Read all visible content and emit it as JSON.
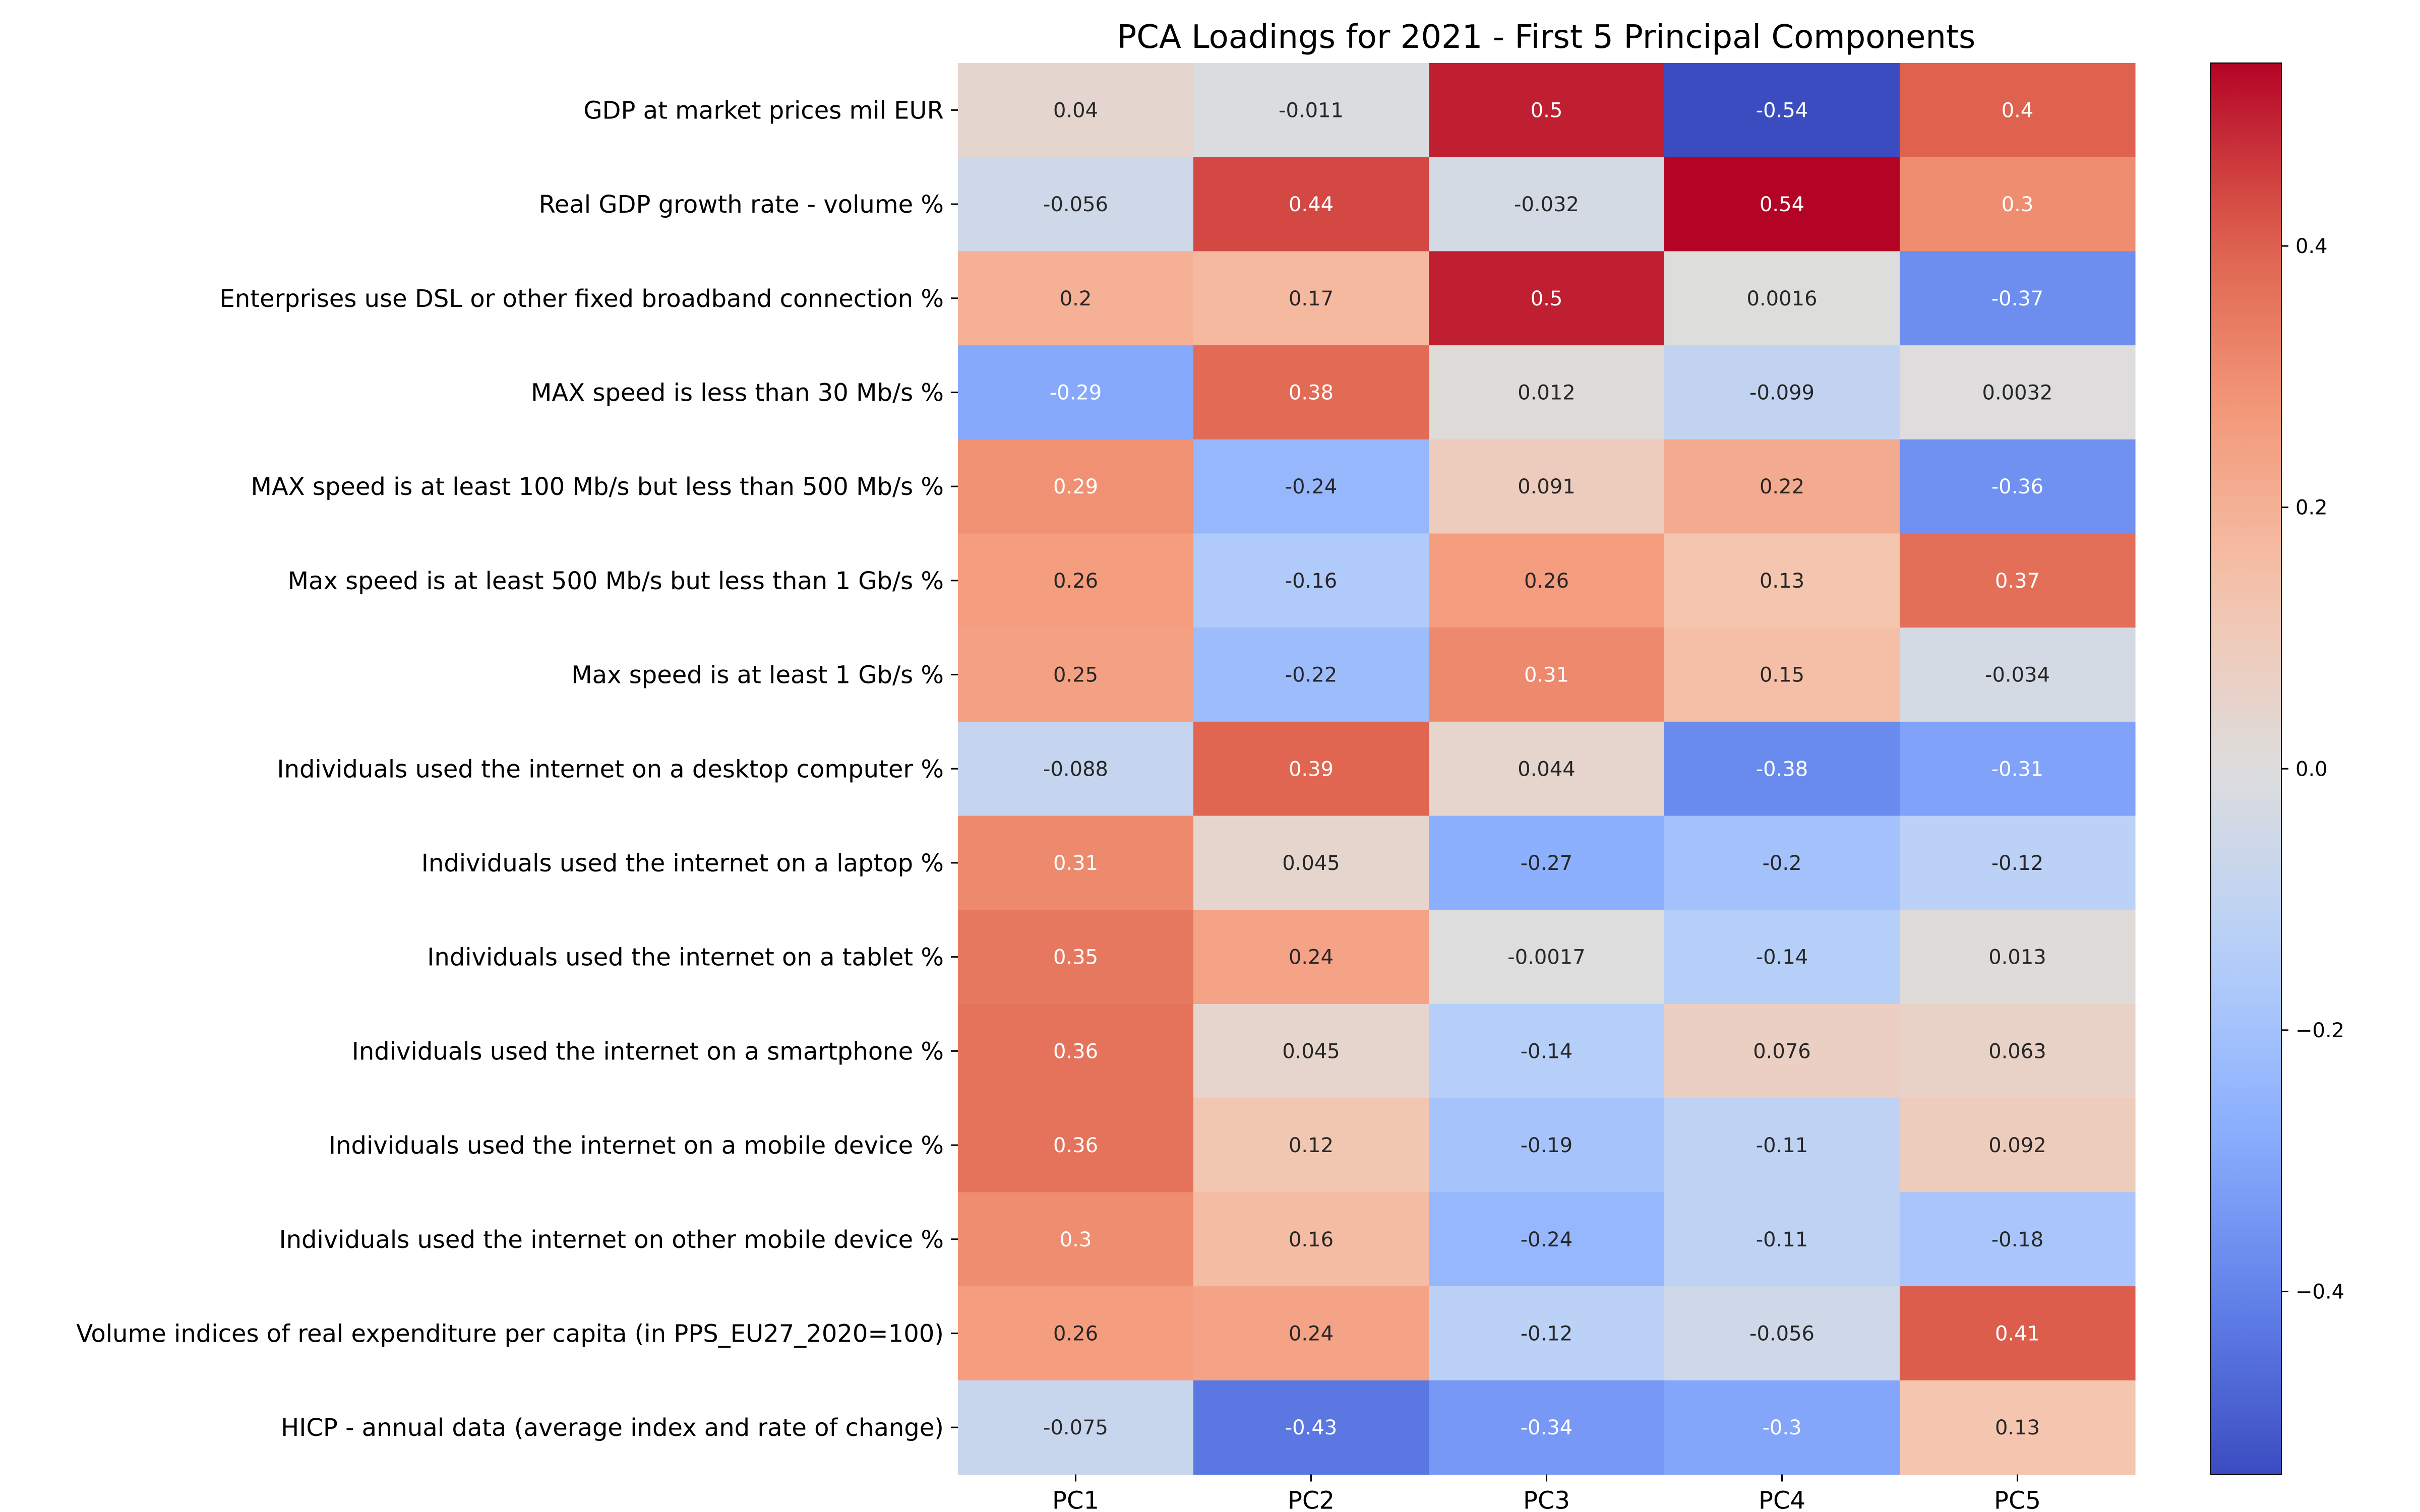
{
  "chart_data": {
    "type": "heatmap",
    "title": "PCA Loadings for 2021 - First 5 Principal Components",
    "colormap": "coolwarm",
    "vmin": -0.54,
    "vmax": 0.54,
    "columns": [
      "PC1",
      "PC2",
      "PC3",
      "PC4",
      "PC5"
    ],
    "rows": [
      "GDP at market prices mil EUR",
      "Real GDP growth rate - volume %",
      "Enterprises use DSL or other fixed broadband connection %",
      "MAX speed is less than 30 Mb/s %",
      "MAX speed is at least 100 Mb/s but less than 500 Mb/s %",
      "Max speed is at least 500 Mb/s but less than 1 Gb/s %",
      "Max speed is at least 1 Gb/s %",
      "Individuals used the internet on a desktop computer %",
      "Individuals used the internet on a laptop %",
      "Individuals used the internet on a tablet %",
      "Individuals used the internet on a smartphone %",
      "Individuals used the internet on a mobile device %",
      "Individuals used the internet on other mobile device %",
      "Volume indices of real expenditure per capita (in PPS_EU27_2020=100)",
      "HICP - annual data (average index and rate of change)"
    ],
    "values": [
      [
        0.04,
        -0.011,
        0.5,
        -0.54,
        0.4
      ],
      [
        -0.056,
        0.44,
        -0.032,
        0.54,
        0.3
      ],
      [
        0.2,
        0.17,
        0.5,
        0.0016,
        -0.37
      ],
      [
        -0.29,
        0.38,
        0.012,
        -0.099,
        0.0032
      ],
      [
        0.29,
        -0.24,
        0.091,
        0.22,
        -0.36
      ],
      [
        0.26,
        -0.16,
        0.26,
        0.13,
        0.37
      ],
      [
        0.25,
        -0.22,
        0.31,
        0.15,
        -0.034
      ],
      [
        -0.088,
        0.39,
        0.044,
        -0.38,
        -0.31
      ],
      [
        0.31,
        0.045,
        -0.27,
        -0.2,
        -0.12
      ],
      [
        0.35,
        0.24,
        -0.0017,
        -0.14,
        0.013
      ],
      [
        0.36,
        0.045,
        -0.14,
        0.076,
        0.063
      ],
      [
        0.36,
        0.12,
        -0.19,
        -0.11,
        0.092
      ],
      [
        0.3,
        0.16,
        -0.24,
        -0.11,
        -0.18
      ],
      [
        0.26,
        0.24,
        -0.12,
        -0.056,
        0.41
      ],
      [
        -0.075,
        -0.43,
        -0.34,
        -0.3,
        0.13
      ]
    ],
    "cell_labels": [
      [
        "0.04",
        "-0.011",
        "0.5",
        "-0.54",
        "0.4"
      ],
      [
        "-0.056",
        "0.44",
        "-0.032",
        "0.54",
        "0.3"
      ],
      [
        "0.2",
        "0.17",
        "0.5",
        "0.0016",
        "-0.37"
      ],
      [
        "-0.29",
        "0.38",
        "0.012",
        "-0.099",
        "0.0032"
      ],
      [
        "0.29",
        "-0.24",
        "0.091",
        "0.22",
        "-0.36"
      ],
      [
        "0.26",
        "-0.16",
        "0.26",
        "0.13",
        "0.37"
      ],
      [
        "0.25",
        "-0.22",
        "0.31",
        "0.15",
        "-0.034"
      ],
      [
        "-0.088",
        "0.39",
        "0.044",
        "-0.38",
        "-0.31"
      ],
      [
        "0.31",
        "0.045",
        "-0.27",
        "-0.2",
        "-0.12"
      ],
      [
        "0.35",
        "0.24",
        "-0.0017",
        "-0.14",
        "0.013"
      ],
      [
        "0.36",
        "0.045",
        "-0.14",
        "0.076",
        "0.063"
      ],
      [
        "0.36",
        "0.12",
        "-0.19",
        "-0.11",
        "0.092"
      ],
      [
        "0.3",
        "0.16",
        "-0.24",
        "-0.11",
        "-0.18"
      ],
      [
        "0.26",
        "0.24",
        "-0.12",
        "-0.056",
        "0.41"
      ],
      [
        "-0.075",
        "-0.43",
        "-0.34",
        "-0.3",
        "0.13"
      ]
    ],
    "colorbar": {
      "ticks": [
        0.4,
        0.2,
        0.0,
        -0.2,
        -0.4
      ],
      "tick_labels": [
        "0.4",
        "0.2",
        "0.0",
        "−0.2",
        "−0.4"
      ]
    }
  }
}
